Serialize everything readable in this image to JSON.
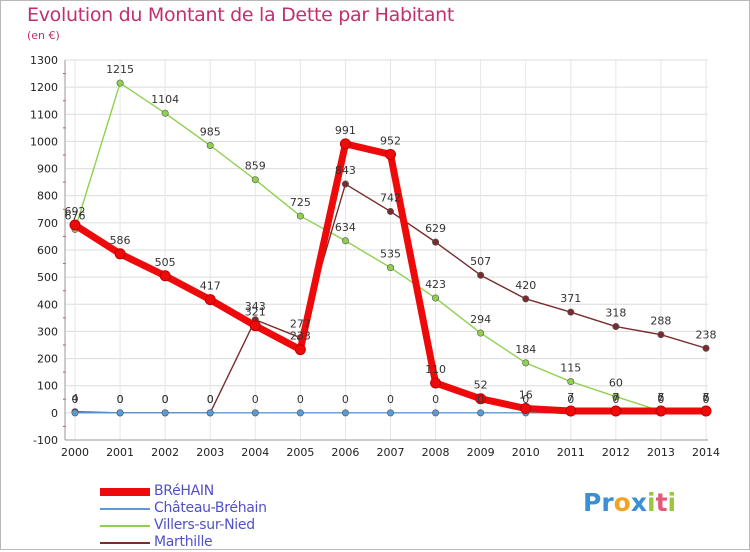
{
  "title": "Evolution du Montant de la Dette par Habitant",
  "subtitle": "(en €)",
  "logo": {
    "letters": [
      "P",
      "r",
      "o",
      "x",
      "i",
      "t",
      "i"
    ],
    "colors": [
      "#3a8fd6",
      "#3a8fd6",
      "#f2a324",
      "#3a8fd6",
      "#9cc63b",
      "#e45a7c",
      "#9cc63b"
    ]
  },
  "chart_data": {
    "type": "line",
    "title": "Evolution du Montant de la Dette par Habitant",
    "ylabel": "(en €)",
    "xlabel": "",
    "x": [
      2000,
      2001,
      2002,
      2003,
      2004,
      2005,
      2006,
      2007,
      2008,
      2009,
      2010,
      2011,
      2012,
      2013,
      2014
    ],
    "ylim": [
      -100,
      1300
    ],
    "yticks": [
      -100,
      0,
      100,
      200,
      300,
      400,
      500,
      600,
      700,
      800,
      900,
      1000,
      1100,
      1200,
      1300
    ],
    "grid": true,
    "legend_position": "bottom-left",
    "series": [
      {
        "name": "BRéHAIN",
        "color": "#ee0a0a",
        "width": 7,
        "values": [
          692,
          586,
          505,
          417,
          321,
          233,
          991,
          952,
          110,
          52,
          16,
          7,
          7,
          7,
          7
        ],
        "labels": [
          "692",
          "586",
          "505",
          "417",
          "321",
          "233",
          "991",
          "952",
          "110",
          "52",
          "16",
          "7",
          "7",
          "7",
          "7"
        ]
      },
      {
        "name": "Château-Bréhain",
        "color": "#5b9bd5",
        "width": 1.4,
        "values": [
          0,
          0,
          0,
          0,
          0,
          0,
          0,
          0,
          0,
          0,
          0,
          0,
          0,
          0,
          0
        ],
        "labels": [
          "0",
          "0",
          "0",
          "0",
          "0",
          "0",
          "0",
          "0",
          "0",
          "0",
          "0",
          "0",
          "0",
          "0",
          "0"
        ]
      },
      {
        "name": "Villers-sur-Nied",
        "color": "#8fd14f",
        "width": 1.4,
        "values": [
          676,
          1215,
          1104,
          985,
          859,
          725,
          634,
          535,
          423,
          294,
          184,
          115,
          60,
          6,
          6
        ],
        "labels": [
          "676",
          "1215",
          "1104",
          "985",
          "859",
          "725",
          "634",
          "535",
          "423",
          "294",
          "184",
          "115",
          "60",
          "6",
          "6"
        ]
      },
      {
        "name": "Marthille",
        "color": "#7a2c2c",
        "width": 1.4,
        "values": [
          4,
          0,
          0,
          0,
          343,
          277,
          843,
          742,
          629,
          507,
          420,
          371,
          318,
          288,
          238
        ],
        "labels": [
          "4",
          "0",
          "0",
          "0",
          "343",
          "277",
          "843",
          "742",
          "629",
          "507",
          "420",
          "371",
          "318",
          "288",
          "238"
        ]
      }
    ]
  }
}
